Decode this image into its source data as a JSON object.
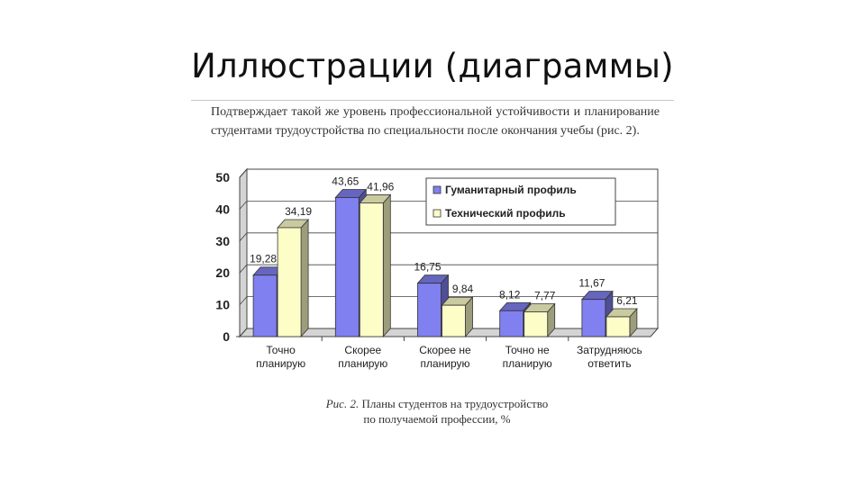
{
  "slide": {
    "title": "Иллюстрации (диаграммы)",
    "paragraph": "Подтверждает такой же уровень профессиональной устойчивости и планирование студентами трудоустройства по специальности после окончания учебы (рис. 2)."
  },
  "caption": {
    "lead": "Рис. 2.",
    "line1": " Планы студентов на трудоустройство",
    "line2": "по получаемой профессии, %"
  },
  "chart_data": {
    "type": "bar",
    "categories": [
      [
        "Точно",
        "планирую"
      ],
      [
        "Скорее",
        "планирую"
      ],
      [
        "Скорее не",
        "планирую"
      ],
      [
        "Точно не",
        "планирую"
      ],
      [
        "Затрудняюсь",
        "ответить"
      ]
    ],
    "series": [
      {
        "name": "Гуманитарный профиль",
        "values": [
          19.28,
          43.65,
          16.75,
          8.12,
          11.67
        ],
        "labels": [
          "19,28",
          "43,65",
          "16,75",
          "8,12",
          "11,67"
        ],
        "color": "#8080f0"
      },
      {
        "name": "Технический профиль",
        "values": [
          34.19,
          41.96,
          9.84,
          7.77,
          6.21
        ],
        "labels": [
          "34,19",
          "41,96",
          "9,84",
          "7,77",
          "6,21"
        ],
        "color": "#fdfdc8"
      }
    ],
    "y_ticks": [
      "0",
      "10",
      "20",
      "30",
      "40",
      "50"
    ],
    "ylim": [
      0,
      50
    ],
    "grid": true,
    "legend": "top-right",
    "three_d": true
  }
}
